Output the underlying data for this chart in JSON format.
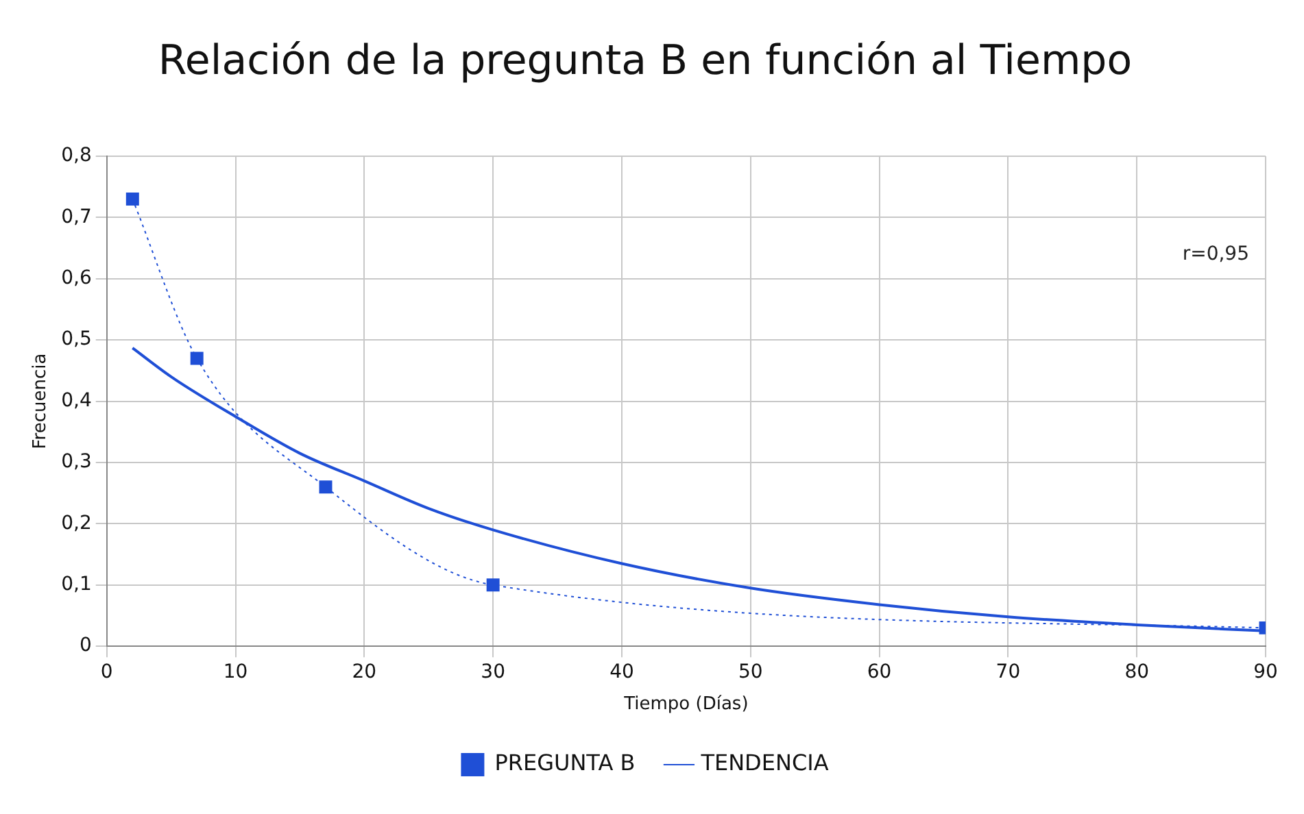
{
  "chart_data": {
    "type": "line",
    "title": "Relación de la pregunta B en función al Tiempo",
    "xlabel": "Tiempo (Días)",
    "ylabel": "Frecuencia",
    "annotations": [
      "r=0,95"
    ],
    "series": [
      {
        "name": "PREGUNTA B",
        "color": "#1f4fd6",
        "x": [
          2,
          7,
          17,
          30,
          90
        ],
        "values": [
          0.73,
          0.47,
          0.26,
          0.1,
          0.03
        ],
        "marker": "square",
        "line_style": "dotted"
      },
      {
        "name": "TENDENCIA",
        "color": "#1f4fd6",
        "x": [
          2,
          5,
          10,
          15,
          20,
          25,
          30,
          40,
          50,
          60,
          70,
          80,
          90
        ],
        "values": [
          0.487,
          0.44,
          0.375,
          0.315,
          0.27,
          0.225,
          0.19,
          0.135,
          0.095,
          0.068,
          0.048,
          0.035,
          0.025
        ],
        "marker": "none",
        "line_style": "solid"
      }
    ],
    "xlim": [
      0,
      90
    ],
    "xticks": [
      0,
      10,
      20,
      30,
      40,
      50,
      60,
      70,
      80,
      90
    ],
    "ylim": [
      0,
      0.8
    ],
    "yticks": [
      0,
      {
        "value": 0.1,
        "label": "0,1"
      },
      {
        "value": 0.2,
        "label": "0,2"
      },
      {
        "value": 0.3,
        "label": "0,3"
      },
      {
        "value": 0.4,
        "label": "0,4"
      },
      {
        "value": 0.5,
        "label": "0,5"
      },
      {
        "value": 0.6,
        "label": "0,6"
      },
      {
        "value": 0.7,
        "label": "0,7"
      },
      {
        "value": 0.8,
        "label": "0,8"
      }
    ],
    "grid": true,
    "legend": "bottom"
  }
}
